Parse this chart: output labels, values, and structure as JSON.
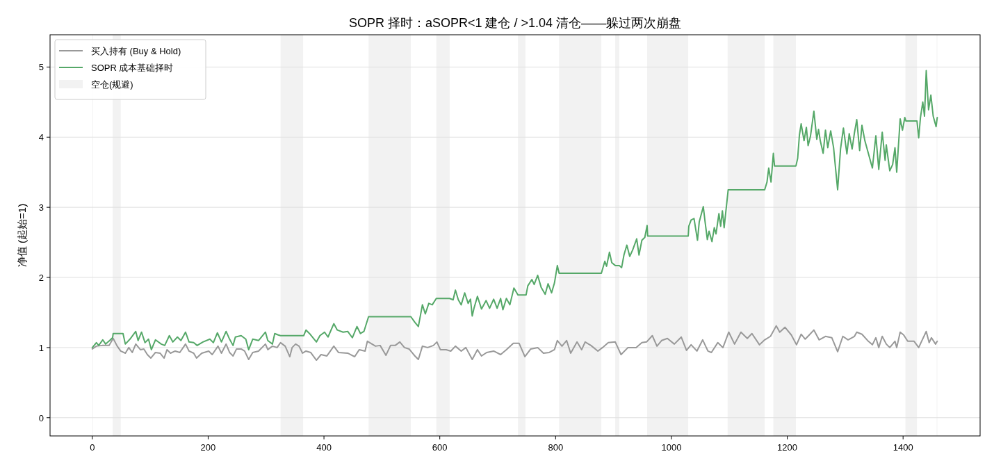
{
  "chart_data": {
    "type": "line",
    "title": "SOPR 择时：aSOPR<1 建仓 / >1.04 清仓——躲过两次崩盘",
    "ylabel": "净值 (起始=1)",
    "xlim": [
      -73,
      1533
    ],
    "xticks": [
      0,
      200,
      400,
      600,
      800,
      1000,
      1200,
      1400
    ],
    "ylim": [
      -0.26,
      5.46
    ],
    "yticks": [
      0,
      1,
      2,
      3,
      4,
      5
    ],
    "grid": "y",
    "legend": "top left",
    "bands": [
      {
        "axis": "x",
        "from": 0,
        "to": 1,
        "label": "空仓(规避)",
        "color": "#f2f2f2"
      },
      {
        "axis": "x",
        "from": 35,
        "to": 49,
        "color": "#f2f2f2"
      },
      {
        "axis": "x",
        "from": 325,
        "to": 364,
        "color": "#f2f2f2"
      },
      {
        "axis": "x",
        "from": 477,
        "to": 550,
        "color": "#f2f2f2"
      },
      {
        "axis": "x",
        "from": 594,
        "to": 617,
        "color": "#f2f2f2"
      },
      {
        "axis": "x",
        "from": 735,
        "to": 748,
        "color": "#f2f2f2"
      },
      {
        "axis": "x",
        "from": 806,
        "to": 879,
        "color": "#f2f2f2"
      },
      {
        "axis": "x",
        "from": 903,
        "to": 910,
        "color": "#f2f2f2"
      },
      {
        "axis": "x",
        "from": 958,
        "to": 1029,
        "color": "#f2f2f2"
      },
      {
        "axis": "x",
        "from": 1097,
        "to": 1161,
        "color": "#f2f2f2"
      },
      {
        "axis": "x",
        "from": 1176,
        "to": 1215,
        "color": "#f2f2f2"
      },
      {
        "axis": "x",
        "from": 1404,
        "to": 1424,
        "color": "#f2f2f2"
      },
      {
        "axis": "x",
        "from": 1458,
        "to": 1459,
        "color": "#f2f2f2"
      }
    ],
    "series": [
      {
        "name": "买入持有 (Buy & Hold)",
        "color": "#999999",
        "x": [
          0,
          7,
          17,
          29,
          36,
          43,
          49,
          57,
          63,
          69,
          75,
          83,
          89,
          95,
          101,
          109,
          117,
          124,
          129,
          135,
          143,
          151,
          161,
          167,
          175,
          180,
          189,
          201,
          207,
          217,
          223,
          231,
          237,
          243,
          249,
          257,
          263,
          270,
          277,
          287,
          299,
          303,
          311,
          319,
          325,
          333,
          341,
          345,
          351,
          357,
          363,
          369,
          377,
          387,
          395,
          405,
          417,
          425,
          441,
          453,
          461,
          471,
          475,
          489,
          497,
          507,
          515,
          523,
          531,
          539,
          547,
          557,
          563,
          570,
          579,
          589,
          595,
          601,
          611,
          619,
          627,
          637,
          645,
          656,
          665,
          672,
          681,
          693,
          705,
          715,
          727,
          737,
          747,
          757,
          769,
          779,
          789,
          798,
          803,
          811,
          819,
          826,
          837,
          845,
          851,
          861,
          873,
          881,
          891,
          903,
          913,
          925,
          939,
          949,
          957,
          967,
          975,
          983,
          993,
          1005,
          1017,
          1026,
          1034,
          1044,
          1054,
          1063,
          1069,
          1080,
          1089,
          1099,
          1109,
          1120,
          1131,
          1139,
          1152,
          1161,
          1171,
          1181,
          1187,
          1196,
          1207,
          1216,
          1224,
          1231,
          1238,
          1246,
          1255,
          1266,
          1277,
          1287,
          1296,
          1305,
          1316,
          1320,
          1329,
          1340,
          1347,
          1353,
          1358,
          1364,
          1371,
          1377,
          1386,
          1389,
          1395,
          1401,
          1408,
          1419,
          1427,
          1432,
          1440,
          1445,
          1449,
          1456,
          1459
        ],
        "values": [
          0.98,
          1.02,
          1.03,
          1.03,
          1.13,
          1.02,
          0.95,
          0.92,
          1.0,
          0.93,
          1.05,
          0.97,
          0.98,
          0.9,
          0.85,
          0.93,
          0.92,
          0.85,
          0.97,
          0.92,
          0.95,
          0.93,
          1.05,
          0.95,
          0.92,
          0.85,
          0.92,
          0.95,
          0.9,
          1.02,
          0.92,
          1.05,
          0.93,
          0.88,
          0.98,
          0.98,
          0.95,
          0.83,
          0.93,
          0.95,
          1.05,
          0.97,
          1.02,
          1.0,
          1.07,
          1.02,
          0.87,
          1.0,
          1.05,
          1.02,
          0.92,
          0.95,
          0.93,
          0.82,
          0.9,
          0.88,
          1.02,
          0.93,
          0.92,
          0.87,
          0.97,
          0.95,
          1.09,
          1.02,
          1.03,
          0.89,
          1.03,
          1.03,
          1.08,
          1.0,
          0.98,
          0.88,
          0.83,
          1.02,
          1.0,
          1.03,
          1.08,
          0.97,
          0.97,
          0.95,
          1.02,
          0.95,
          1.0,
          0.83,
          0.97,
          0.88,
          0.93,
          0.95,
          0.9,
          0.97,
          1.06,
          1.06,
          0.87,
          0.98,
          1.0,
          0.92,
          0.93,
          0.97,
          1.1,
          1.02,
          1.1,
          0.92,
          1.08,
          0.97,
          1.08,
          1.03,
          0.95,
          1.0,
          1.07,
          1.08,
          0.9,
          1.0,
          1.0,
          1.07,
          1.08,
          1.17,
          1.02,
          1.1,
          1.13,
          1.05,
          1.15,
          0.96,
          1.04,
          0.95,
          1.11,
          0.95,
          0.93,
          1.07,
          1.0,
          1.22,
          1.05,
          1.22,
          1.13,
          1.2,
          1.04,
          1.11,
          1.16,
          1.31,
          1.22,
          1.29,
          1.18,
          1.04,
          1.19,
          1.12,
          1.18,
          1.25,
          1.11,
          1.16,
          1.14,
          0.94,
          1.16,
          1.11,
          1.16,
          1.22,
          1.19,
          1.09,
          1.04,
          1.14,
          1.0,
          1.16,
          1.05,
          1.0,
          1.09,
          1.0,
          1.22,
          1.18,
          1.09,
          1.09,
          1.0,
          1.09,
          1.23,
          1.07,
          1.14,
          1.05,
          1.09
        ]
      },
      {
        "name": "SOPR 成本基础择时",
        "color": "#55a868",
        "x": [
          0,
          7,
          11,
          18,
          23,
          30,
          35,
          36,
          53,
          57,
          65,
          75,
          79,
          85,
          91,
          97,
          102,
          109,
          119,
          125,
          133,
          139,
          147,
          153,
          161,
          167,
          175,
          181,
          191,
          203,
          209,
          216,
          223,
          231,
          237,
          243,
          247,
          257,
          265,
          270,
          277,
          287,
          299,
          303,
          311,
          315,
          321,
          325,
          365,
          369,
          375,
          387,
          393,
          401,
          407,
          417,
          423,
          433,
          441,
          449,
          457,
          463,
          469,
          477,
          550,
          557,
          563,
          570,
          575,
          581,
          587,
          594,
          617,
          623,
          627,
          632,
          637,
          643,
          649,
          653,
          656,
          659,
          665,
          672,
          680,
          686,
          693,
          699,
          705,
          709,
          715,
          721,
          728,
          735,
          749,
          752,
          759,
          763,
          769,
          775,
          782,
          787,
          793,
          798,
          803,
          806,
          879,
          885,
          888,
          893,
          897,
          903,
          910,
          914,
          918,
          923,
          928,
          933,
          940,
          944,
          949,
          954,
          958,
          959,
          1029,
          1030,
          1034,
          1039,
          1045,
          1048,
          1055,
          1058,
          1062,
          1065,
          1070,
          1074,
          1077,
          1082,
          1085,
          1088,
          1091,
          1098,
          1161,
          1165,
          1168,
          1172,
          1176,
          1178,
          1215,
          1218,
          1221,
          1224,
          1229,
          1233,
          1236,
          1240,
          1246,
          1251,
          1254,
          1257,
          1262,
          1266,
          1270,
          1275,
          1280,
          1283,
          1287,
          1292,
          1297,
          1303,
          1307,
          1312,
          1316,
          1320,
          1325,
          1329,
          1334,
          1340,
          1347,
          1353,
          1358,
          1364,
          1369,
          1371,
          1377,
          1382,
          1386,
          1389,
          1395,
          1399,
          1403,
          1405,
          1424,
          1427,
          1430,
          1434,
          1437,
          1440,
          1444,
          1448,
          1452,
          1457,
          1459
        ],
        "values": [
          1.0,
          1.07,
          1.03,
          1.11,
          1.05,
          1.1,
          1.14,
          1.2,
          1.2,
          1.05,
          1.12,
          1.23,
          1.1,
          1.22,
          1.07,
          1.12,
          0.97,
          1.11,
          1.05,
          1.03,
          1.17,
          1.08,
          1.15,
          1.1,
          1.22,
          1.08,
          1.07,
          1.03,
          1.08,
          1.12,
          1.07,
          1.21,
          1.08,
          1.23,
          1.12,
          1.03,
          1.15,
          1.17,
          1.12,
          0.97,
          1.12,
          1.1,
          1.22,
          1.1,
          1.05,
          1.2,
          1.18,
          1.17,
          1.17,
          1.25,
          1.2,
          1.08,
          1.17,
          1.22,
          1.15,
          1.34,
          1.25,
          1.22,
          1.23,
          1.14,
          1.3,
          1.2,
          1.23,
          1.44,
          1.44,
          1.36,
          1.3,
          1.61,
          1.48,
          1.63,
          1.61,
          1.7,
          1.7,
          1.68,
          1.82,
          1.68,
          1.61,
          1.78,
          1.63,
          1.69,
          1.45,
          1.56,
          1.73,
          1.55,
          1.67,
          1.56,
          1.69,
          1.56,
          1.7,
          1.54,
          1.7,
          1.61,
          1.85,
          1.75,
          1.75,
          1.88,
          1.97,
          1.9,
          2.03,
          1.86,
          1.76,
          1.91,
          1.78,
          1.92,
          2.17,
          2.06,
          2.06,
          2.23,
          2.16,
          2.36,
          2.21,
          2.17,
          2.17,
          2.14,
          2.32,
          2.46,
          2.3,
          2.39,
          2.55,
          2.32,
          2.53,
          2.57,
          2.74,
          2.59,
          2.59,
          2.73,
          2.82,
          2.84,
          2.53,
          2.79,
          3.01,
          2.8,
          2.54,
          2.66,
          2.51,
          2.71,
          2.62,
          2.91,
          2.73,
          2.95,
          2.71,
          3.25,
          3.25,
          3.36,
          3.56,
          3.36,
          3.77,
          3.59,
          3.59,
          3.7,
          4.03,
          4.19,
          3.95,
          4.14,
          3.88,
          4.01,
          4.37,
          3.97,
          4.11,
          3.95,
          3.77,
          4.1,
          3.85,
          4.09,
          3.85,
          3.59,
          3.25,
          3.83,
          4.13,
          3.76,
          4.05,
          3.83,
          4.06,
          4.25,
          3.81,
          4.17,
          3.95,
          3.77,
          3.56,
          4.02,
          3.54,
          4.07,
          3.67,
          3.89,
          3.52,
          3.61,
          3.85,
          3.5,
          4.26,
          4.1,
          4.28,
          4.23,
          4.23,
          3.99,
          4.28,
          4.5,
          4.3,
          4.95,
          4.39,
          4.6,
          4.3,
          4.15,
          4.28
        ]
      }
    ]
  }
}
